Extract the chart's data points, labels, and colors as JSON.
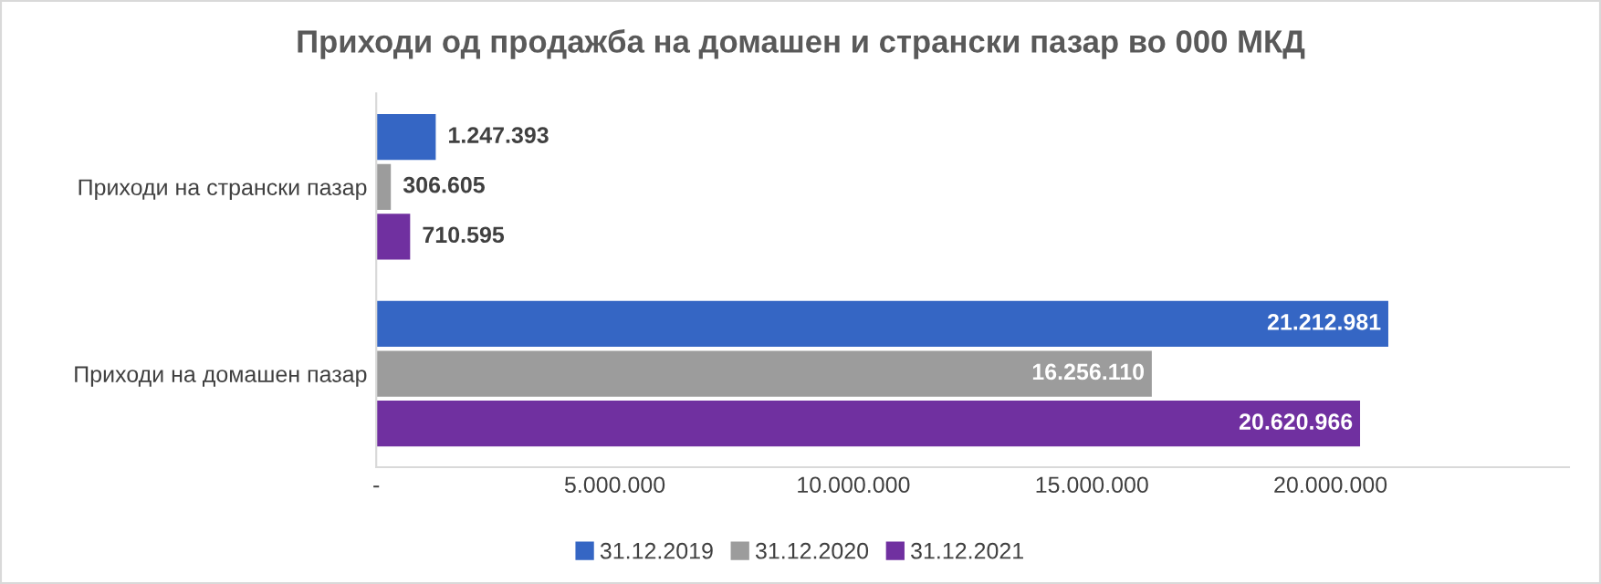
{
  "chart_data": {
    "type": "bar",
    "orientation": "horizontal",
    "title": "Приходи од продажба на домашен и странски пазар во 000 МКД",
    "categories": [
      "Приходи на странски пазар",
      "Приходи на домашен пазар"
    ],
    "series": [
      {
        "name": "31.12.2019",
        "color": "#3566c4",
        "values": [
          1247393,
          21212981
        ],
        "value_labels": [
          "1.247.393",
          "21.212.981"
        ]
      },
      {
        "name": "31.12.2020",
        "color": "#9c9c9c",
        "values": [
          306605,
          16256110
        ],
        "value_labels": [
          "306.605",
          "16.256.110"
        ]
      },
      {
        "name": "31.12.2021",
        "color": "#7030a0",
        "values": [
          710595,
          20620966
        ],
        "value_labels": [
          "710.595",
          "20.620.966"
        ]
      }
    ],
    "xlim": [
      0,
      25000000
    ],
    "xticks": [
      {
        "value": 0,
        "label": "-"
      },
      {
        "value": 5000000,
        "label": "5.000.000"
      },
      {
        "value": 10000000,
        "label": "10.000.000"
      },
      {
        "value": 15000000,
        "label": "15.000.000"
      },
      {
        "value": 20000000,
        "label": "20.000.000"
      }
    ],
    "grid": false,
    "legend": "bottom"
  }
}
